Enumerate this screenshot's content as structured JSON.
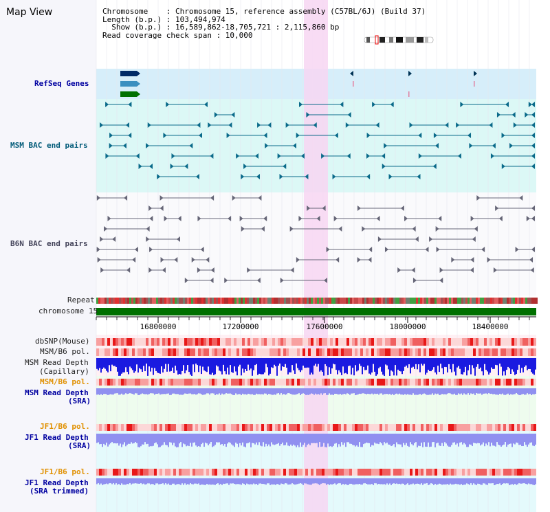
{
  "app": {
    "title": "Map View"
  },
  "info": {
    "line1": "Chromosome    : Chromosome 15, reference assembly (C57BL/6J) (Build 37)",
    "line2": "Length (b.p.) : 103,494,974",
    "line3": "  Show (b.p.) : 16,589,862-18,705,721 : 2,115,860 bp",
    "line4": "Read coverage check span : 10,000"
  },
  "tracks": {
    "refseq": "RefSeq Genes",
    "msm_bac": "MSM BAC end pairs",
    "b6n_bac": "B6N BAC end pairs",
    "repeat": "Repeat",
    "chromosome": "chromosome 15",
    "dbsnp": "dbSNP(Mouse)",
    "msm_pol": "MSM/B6 pol.",
    "msm_depth_cap_1": "MSM Read Depth",
    "msm_depth_cap_2": "(Capillary)",
    "msm_pol2": "MSM/B6 pol.",
    "msm_depth_sra_1": "MSM Read Depth",
    "msm_depth_sra_2": "(SRA)",
    "jf1_pol": "JF1/B6 pol.",
    "jf1_depth_1": "JF1 Read Depth",
    "jf1_depth_2": "(SRA)",
    "jf1_pol2": "JF1/B6 pol.",
    "jf1_depth_trim_1": "JF1 Read Depth",
    "jf1_depth_trim_2": "(SRA trimmed)"
  },
  "axis": {
    "ticks": [
      "16800000",
      "17200000",
      "17600000",
      "18000000",
      "18400000"
    ]
  },
  "colors": {
    "highlight": "#f7d6f2",
    "refseq_bg": "#d6eefa",
    "msm_bac_bg": "#dcf8f6",
    "chromosome_bar": "#007000",
    "depth_blue": "#1a1ae0",
    "depth_light": "#9090f0",
    "snp_red": "#e83030"
  }
}
